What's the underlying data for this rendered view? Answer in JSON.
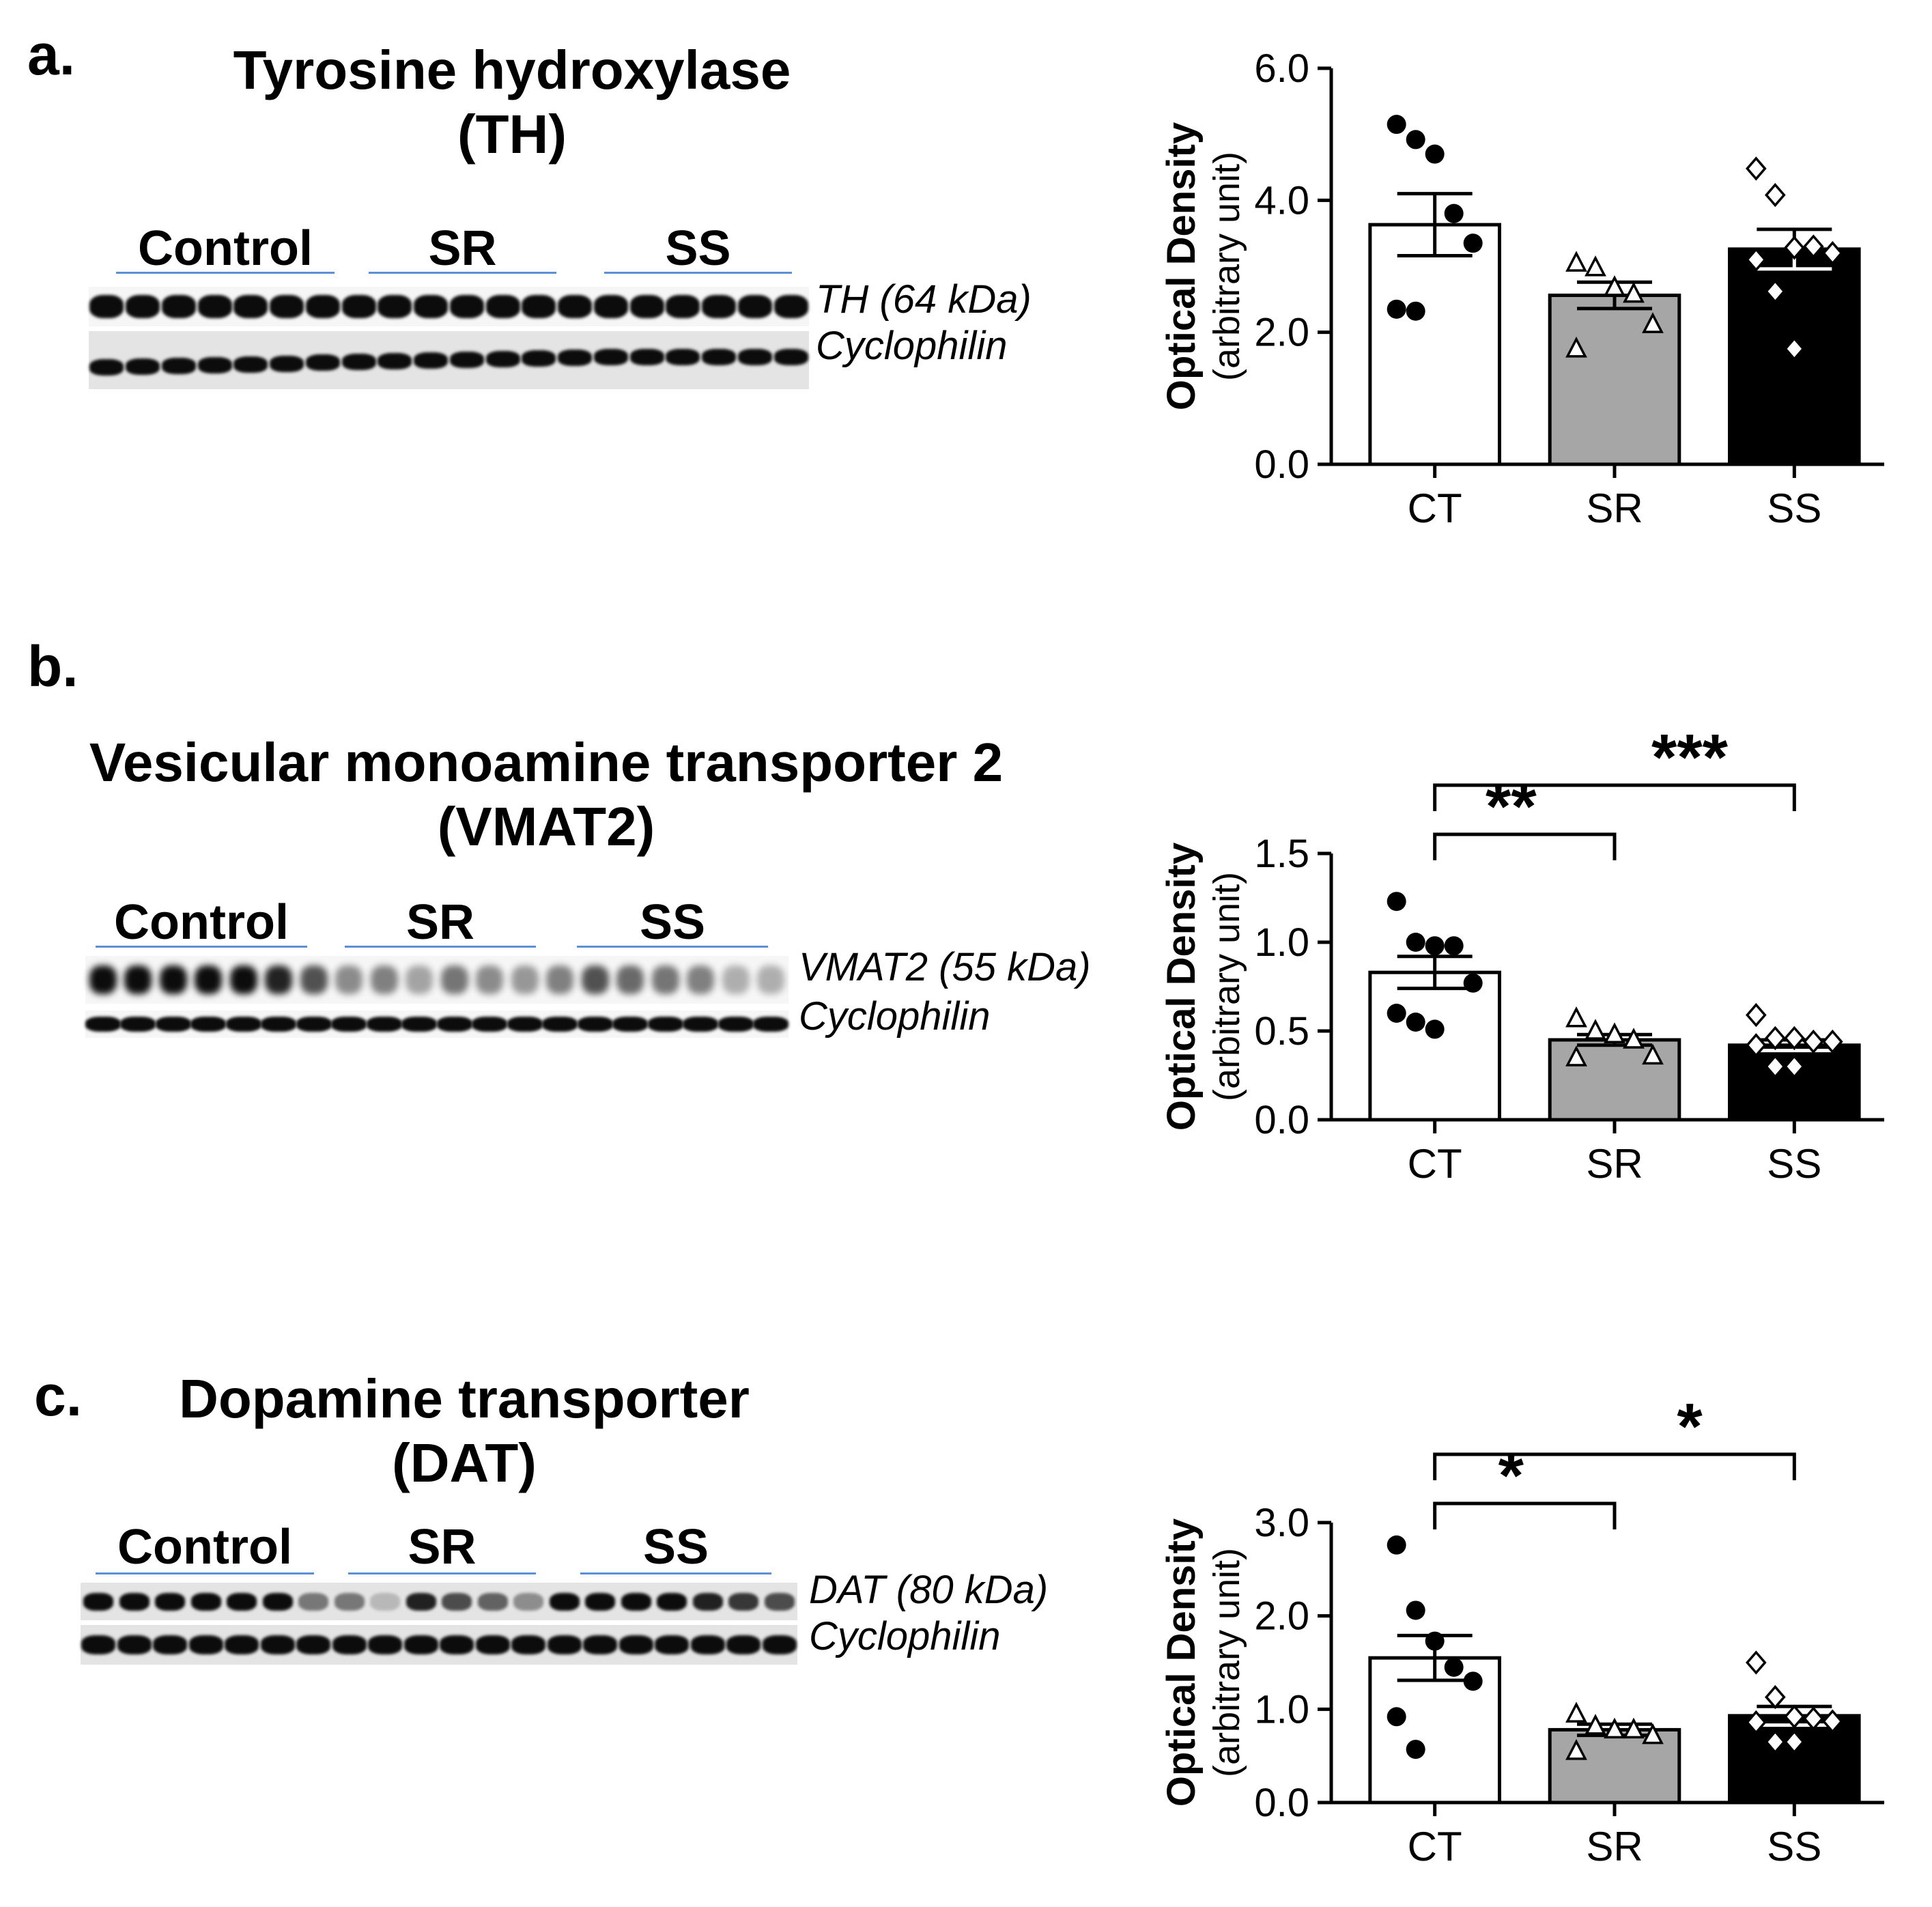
{
  "panels": [
    {
      "letter": "a.",
      "title_line1": "Tyrosine hydroxylase",
      "title_line2": "(TH)",
      "groups": [
        "Control",
        "SR",
        "SS"
      ],
      "band_labels": [
        "TH (64 kDa)",
        "Cyclophilin"
      ],
      "chart_data": {
        "type": "bar",
        "categories": [
          "CT",
          "SR",
          "SS"
        ],
        "values": [
          3.63,
          2.56,
          3.26
        ],
        "sem": [
          0.47,
          0.2,
          0.3
        ],
        "points": [
          [
            5.15,
            4.92,
            4.7,
            3.8,
            3.35,
            2.35,
            2.32
          ],
          [
            3.05,
            2.98,
            2.68,
            2.58,
            2.12,
            1.75
          ],
          [
            4.48,
            4.08,
            3.28,
            3.3,
            3.2,
            3.1,
            2.62,
            1.75
          ]
        ],
        "ylim": [
          0,
          6.0
        ],
        "yticks": [
          "0.0",
          "2.0",
          "4.0",
          "6.0"
        ],
        "ylabel": "Optical Density",
        "ylabel2": "(arbitrary unit)",
        "colors": [
          "#ffffff",
          "#a6a6a6",
          "#000000"
        ],
        "markers": [
          "circle-filled",
          "triangle-open",
          "diamond-open"
        ],
        "significance": []
      }
    },
    {
      "letter": "b.",
      "title_line1": "Vesicular monoamine transporter 2",
      "title_line2": "(VMAT2)",
      "groups": [
        "Control",
        "SR",
        "SS"
      ],
      "band_labels": [
        "VMAT2 (55 kDa)",
        "Cyclophilin"
      ],
      "chart_data": {
        "type": "bar",
        "categories": [
          "CT",
          "SR",
          "SS"
        ],
        "values": [
          0.83,
          0.45,
          0.42
        ],
        "sem": [
          0.09,
          0.03,
          0.03
        ],
        "points": [
          [
            1.23,
            1.0,
            0.98,
            0.98,
            0.77,
            0.6,
            0.55,
            0.51
          ],
          [
            0.57,
            0.5,
            0.48,
            0.45,
            0.36,
            0.35
          ],
          [
            0.59,
            0.46,
            0.46,
            0.44,
            0.44,
            0.42,
            0.3,
            0.3
          ]
        ],
        "ylim": [
          0,
          1.5
        ],
        "yticks": [
          "0.0",
          "0.5",
          "1.0",
          "1.5"
        ],
        "ylabel": "Optical Density",
        "ylabel2": "(arbitrary unit)",
        "colors": [
          "#ffffff",
          "#a6a6a6",
          "#000000"
        ],
        "markers": [
          "circle-filled",
          "triangle-open",
          "diamond-open"
        ],
        "significance": [
          {
            "from": 0,
            "to": 1,
            "label": "**"
          },
          {
            "from": 0,
            "to": 2,
            "label": "***"
          }
        ]
      }
    },
    {
      "letter": "c.",
      "title_line1": "Dopamine transporter",
      "title_line2": "(DAT)",
      "groups": [
        "Control",
        "SR",
        "SS"
      ],
      "band_labels": [
        "DAT (80 kDa)",
        "Cyclophilin"
      ],
      "chart_data": {
        "type": "bar",
        "categories": [
          "CT",
          "SR",
          "SS"
        ],
        "values": [
          1.55,
          0.78,
          0.93
        ],
        "sem": [
          0.24,
          0.06,
          0.1
        ],
        "points": [
          [
            2.76,
            2.06,
            1.73,
            1.45,
            1.3,
            0.92,
            0.57
          ],
          [
            0.95,
            0.82,
            0.78,
            0.78,
            0.72,
            0.55
          ],
          [
            1.5,
            1.13,
            0.92,
            0.9,
            0.87,
            0.86,
            0.65,
            0.65
          ]
        ],
        "ylim": [
          0,
          3.0
        ],
        "yticks": [
          "0.0",
          "1.0",
          "2.0",
          "3.0"
        ],
        "ylabel": "Optical Density",
        "ylabel2": "(arbitrary unit)",
        "colors": [
          "#ffffff",
          "#a6a6a6",
          "#000000"
        ],
        "markers": [
          "circle-filled",
          "triangle-open",
          "diamond-open"
        ],
        "significance": [
          {
            "from": 0,
            "to": 1,
            "label": "*"
          },
          {
            "from": 0,
            "to": 2,
            "label": "*"
          }
        ]
      }
    }
  ]
}
